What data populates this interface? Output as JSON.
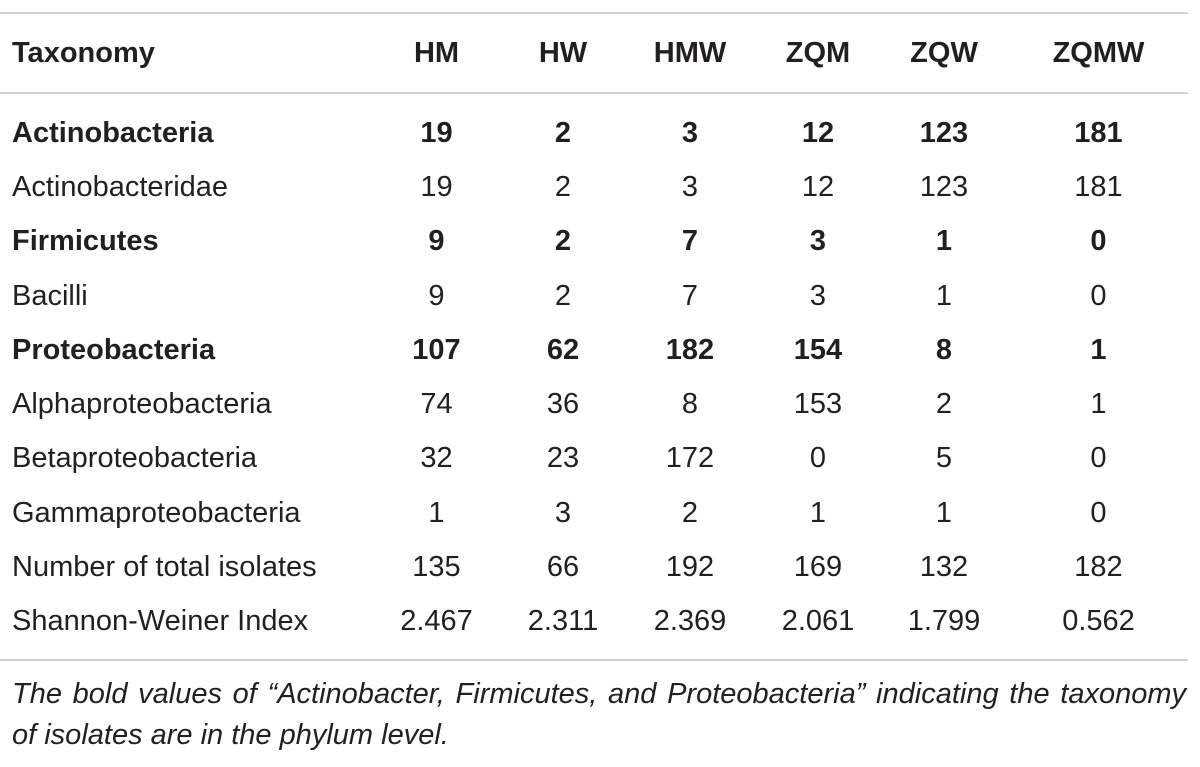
{
  "table": {
    "headers": [
      "Taxonomy",
      "HM",
      "HW",
      "HMW",
      "ZQM",
      "ZQW",
      "ZQMW"
    ],
    "rows": [
      {
        "label": "Actinobacteria",
        "bold": true,
        "values": [
          "19",
          "2",
          "3",
          "12",
          "123",
          "181"
        ]
      },
      {
        "label": "Actinobacteridae",
        "bold": false,
        "values": [
          "19",
          "2",
          "3",
          "12",
          "123",
          "181"
        ]
      },
      {
        "label": "Firmicutes",
        "bold": true,
        "values": [
          "9",
          "2",
          "7",
          "3",
          "1",
          "0"
        ]
      },
      {
        "label": "Bacilli",
        "bold": false,
        "values": [
          "9",
          "2",
          "7",
          "3",
          "1",
          "0"
        ]
      },
      {
        "label": "Proteobacteria",
        "bold": true,
        "values": [
          "107",
          "62",
          "182",
          "154",
          "8",
          "1"
        ]
      },
      {
        "label": "Alphaproteobacteria",
        "bold": false,
        "values": [
          "74",
          "36",
          "8",
          "153",
          "2",
          "1"
        ]
      },
      {
        "label": "Betaproteobacteria",
        "bold": false,
        "values": [
          "32",
          "23",
          "172",
          "0",
          "5",
          "0"
        ]
      },
      {
        "label": "Gammaproteobacteria",
        "bold": false,
        "values": [
          "1",
          "3",
          "2",
          "1",
          "1",
          "0"
        ]
      },
      {
        "label": "Number of total isolates",
        "bold": false,
        "values": [
          "135",
          "66",
          "192",
          "169",
          "132",
          "182"
        ]
      },
      {
        "label": "Shannon-Weiner Index",
        "bold": false,
        "values": [
          "2.467",
          "2.311",
          "2.369",
          "2.061",
          "1.799",
          "0.562"
        ]
      }
    ]
  },
  "footnote": "The bold values of “Actinobacter, Firmicutes, and Proteobacteria” indicating the taxonomy of isolates are in the phylum level."
}
